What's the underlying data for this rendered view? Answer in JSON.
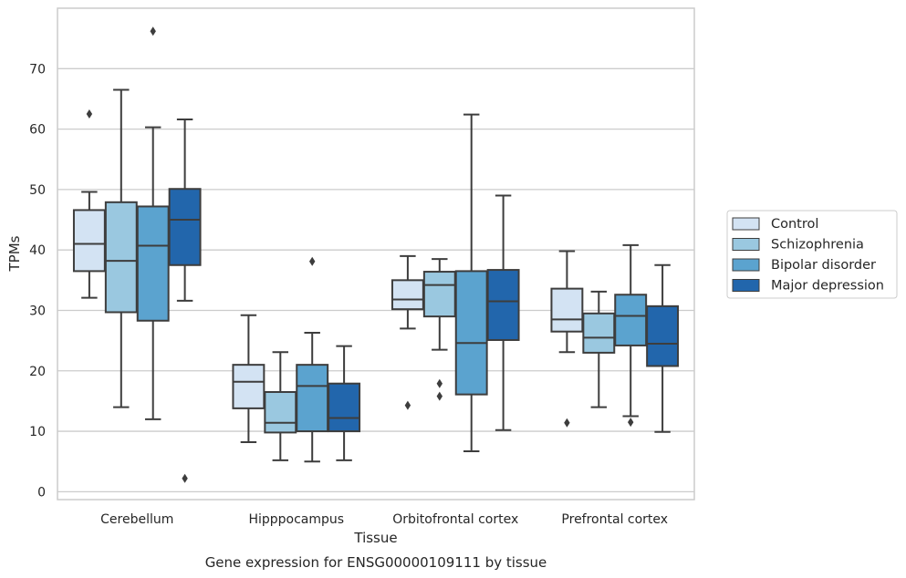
{
  "caption": "Gene expression for ENSG00000109111 by tissue",
  "chart_data": {
    "type": "box",
    "title": "",
    "xlabel": "Tissue",
    "ylabel": "TPMs",
    "ylim": [
      -1.3,
      80
    ],
    "yticks": [
      0,
      10,
      20,
      30,
      40,
      50,
      60,
      70
    ],
    "grid": "horizontal",
    "legend_position": "right",
    "categories": [
      "Cerebellum",
      "Hipppocampus",
      "Orbitofrontal cortex",
      "Prefrontal cortex"
    ],
    "series": [
      {
        "name": "Control",
        "color": "#d3e3f3",
        "boxes": [
          {
            "whislo": 32.1,
            "q1": 36.5,
            "med": 41.0,
            "q3": 46.6,
            "whishi": 49.6,
            "fliers": [
              62.5
            ]
          },
          {
            "whislo": 8.2,
            "q1": 13.8,
            "med": 18.2,
            "q3": 21.0,
            "whishi": 29.2,
            "fliers": []
          },
          {
            "whislo": 27.0,
            "q1": 30.2,
            "med": 31.8,
            "q3": 35.0,
            "whishi": 39.0,
            "fliers": [
              14.3
            ]
          },
          {
            "whislo": 23.1,
            "q1": 26.5,
            "med": 28.5,
            "q3": 33.6,
            "whishi": 39.8,
            "fliers": [
              11.4
            ]
          }
        ]
      },
      {
        "name": "Schizophrenia",
        "color": "#9ac8e0",
        "boxes": [
          {
            "whislo": 14.0,
            "q1": 29.7,
            "med": 38.2,
            "q3": 47.9,
            "whishi": 66.5,
            "fliers": []
          },
          {
            "whislo": 5.2,
            "q1": 9.8,
            "med": 11.4,
            "q3": 16.5,
            "whishi": 23.1,
            "fliers": []
          },
          {
            "whislo": 23.5,
            "q1": 29.0,
            "med": 34.2,
            "q3": 36.4,
            "whishi": 38.5,
            "fliers": [
              17.9,
              15.8
            ]
          },
          {
            "whislo": 14.0,
            "q1": 23.0,
            "med": 25.5,
            "q3": 29.5,
            "whishi": 33.1,
            "fliers": []
          }
        ]
      },
      {
        "name": "Bipolar disorder",
        "color": "#5ba3cf",
        "boxes": [
          {
            "whislo": 12.0,
            "q1": 28.3,
            "med": 40.7,
            "q3": 47.2,
            "whishi": 60.3,
            "fliers": [
              76.2
            ]
          },
          {
            "whislo": 5.0,
            "q1": 10.0,
            "med": 17.5,
            "q3": 21.0,
            "whishi": 26.3,
            "fliers": [
              38.1
            ]
          },
          {
            "whislo": 6.7,
            "q1": 16.1,
            "med": 24.6,
            "q3": 36.5,
            "whishi": 62.4,
            "fliers": []
          },
          {
            "whislo": 12.5,
            "q1": 24.2,
            "med": 29.1,
            "q3": 32.6,
            "whishi": 40.8,
            "fliers": [
              11.5
            ]
          }
        ]
      },
      {
        "name": "Major depression",
        "color": "#2266ac",
        "boxes": [
          {
            "whislo": 31.6,
            "q1": 37.5,
            "med": 45.0,
            "q3": 50.1,
            "whishi": 61.6,
            "fliers": [
              2.2
            ]
          },
          {
            "whislo": 5.2,
            "q1": 10.0,
            "med": 12.2,
            "q3": 17.9,
            "whishi": 24.1,
            "fliers": []
          },
          {
            "whislo": 10.2,
            "q1": 25.1,
            "med": 31.5,
            "q3": 36.7,
            "whishi": 49.0,
            "fliers": []
          },
          {
            "whislo": 9.9,
            "q1": 20.8,
            "med": 24.5,
            "q3": 30.7,
            "whishi": 37.5,
            "fliers": []
          }
        ]
      }
    ]
  }
}
